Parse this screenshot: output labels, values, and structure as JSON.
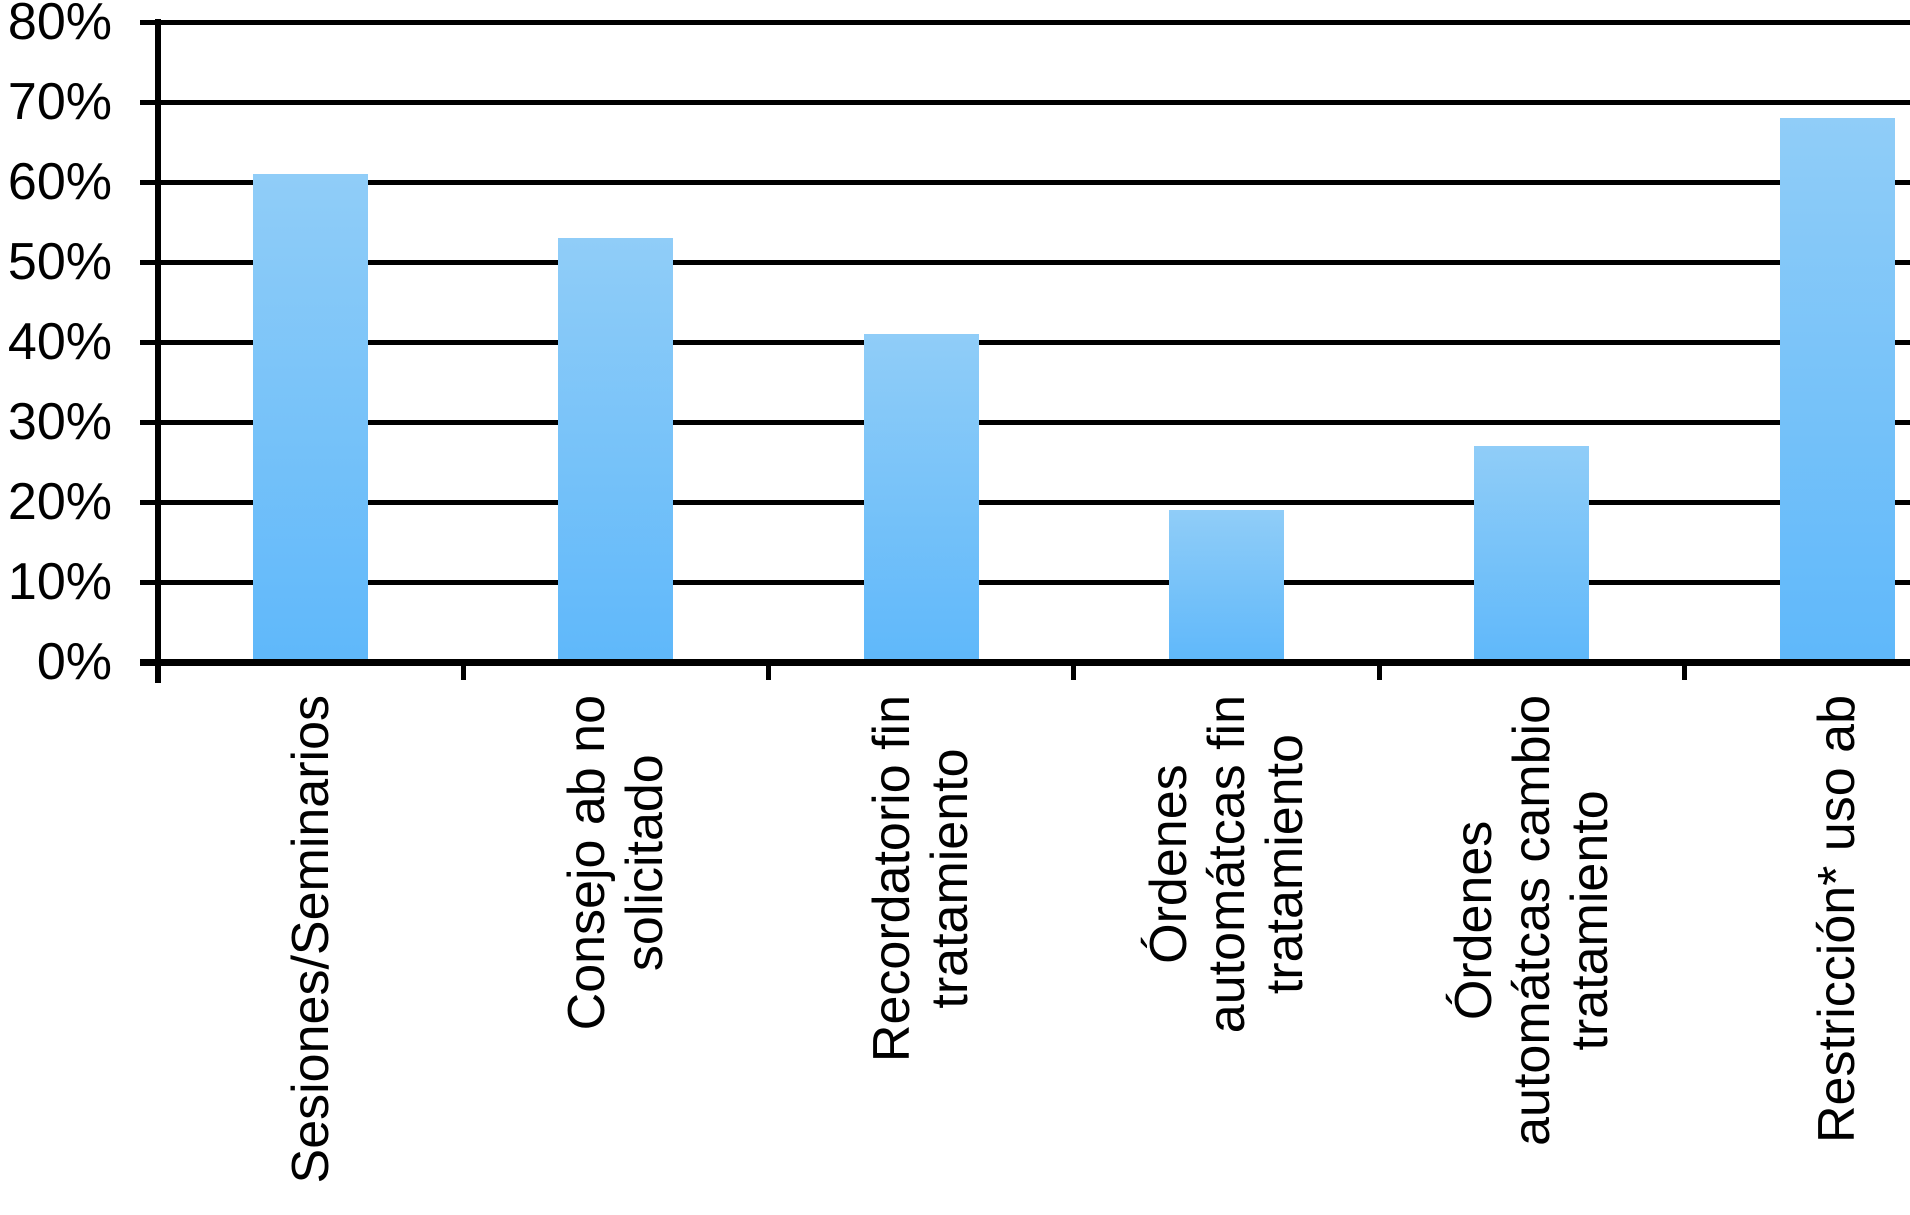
{
  "chart_data": {
    "type": "bar",
    "title": "",
    "xlabel": "",
    "ylabel": "",
    "unit": "%",
    "categories": [
      "Sesiones/Seminarios",
      "Consejo ab no solicitado",
      "Recordatorio fin tratamiento",
      "Órdenes automátcas fin tratamiento",
      "Órdenes automátcas cambio tratamiento",
      "Restricción* uso ab"
    ],
    "category_lines": [
      [
        "Sesiones/Seminarios"
      ],
      [
        "Consejo ab no",
        "solicitado"
      ],
      [
        "Recordatorio fin",
        "tratamiento"
      ],
      [
        "Órdenes",
        "automátcas fin",
        "tratamiento"
      ],
      [
        "Órdenes",
        "automátcas cambio",
        "tratamiento"
      ],
      [
        "Restricción* uso ab"
      ]
    ],
    "values": [
      61,
      53,
      41,
      19,
      27,
      68
    ],
    "ylim": [
      0,
      80
    ],
    "ytick_step": 10,
    "ytick_labels": [
      "0%",
      "10%",
      "20%",
      "30%",
      "40%",
      "50%",
      "60%",
      "70%",
      "80%"
    ],
    "grid": true,
    "legend_position": "none",
    "colors": {
      "bar_gradient_top": "#90CDF8",
      "bar_gradient_bottom": "#5FB8FA",
      "line_color": "#000000",
      "text_color": "#000000",
      "background": "#ffffff"
    }
  }
}
